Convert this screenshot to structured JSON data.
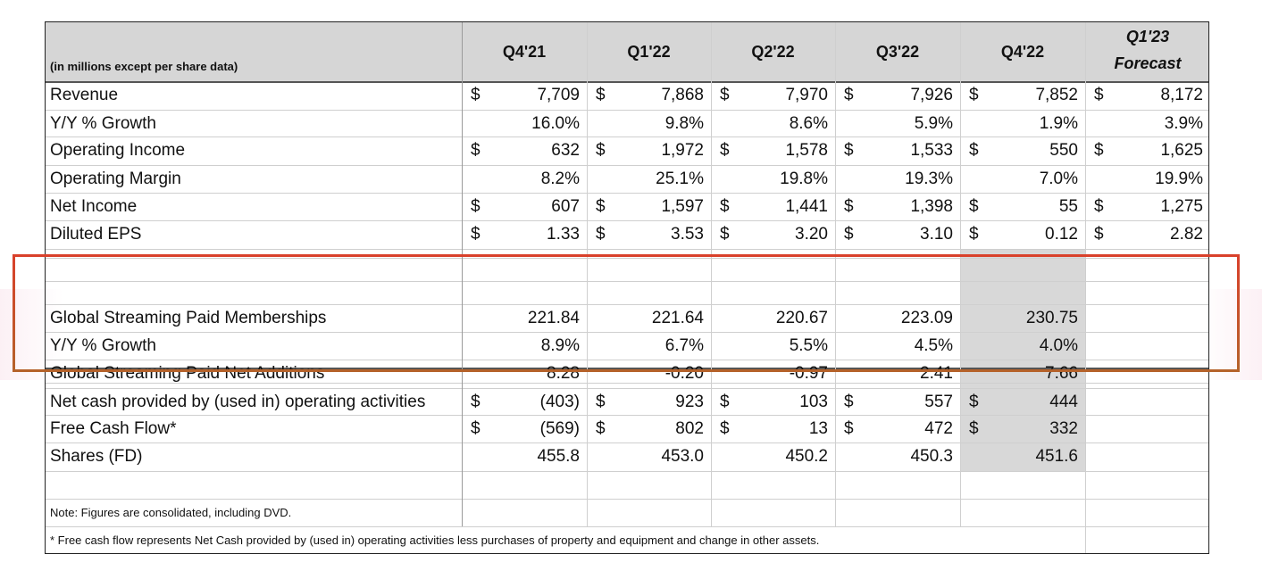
{
  "header": {
    "units_label": "(in millions except per share data)",
    "columns": [
      "Q4'21",
      "Q1'22",
      "Q2'22",
      "Q3'22",
      "Q4'22"
    ],
    "forecast_top": "Q1'23",
    "forecast_bottom": "Forecast"
  },
  "rows": {
    "revenue": {
      "label": "Revenue",
      "values": [
        "7,709",
        "7,868",
        "7,970",
        "7,926",
        "7,852",
        "8,172"
      ]
    },
    "revenue_growth": {
      "label": " Y/Y % Growth",
      "values": [
        "16.0%",
        "9.8%",
        "8.6%",
        "5.9%",
        "1.9%",
        "3.9%"
      ]
    },
    "operating_income": {
      "label": "Operating Income",
      "values": [
        "632",
        "1,972",
        "1,578",
        "1,533",
        "550",
        "1,625"
      ]
    },
    "operating_margin": {
      "label": "Operating Margin",
      "values": [
        "8.2%",
        "25.1%",
        "19.8%",
        "19.3%",
        "7.0%",
        "19.9%"
      ]
    },
    "net_income": {
      "label": "Net Income",
      "values": [
        "607",
        "1,597",
        "1,441",
        "1,398",
        "55",
        "1,275"
      ]
    },
    "diluted_eps": {
      "label": "Diluted EPS",
      "values": [
        "1.33",
        "3.53",
        "3.20",
        "3.10",
        "0.12",
        "2.82"
      ]
    },
    "memberships": {
      "label": "Global Streaming Paid Memberships",
      "values": [
        "221.84",
        "221.64",
        "220.67",
        "223.09",
        "230.75",
        ""
      ]
    },
    "membership_growth": {
      "label": " Y/Y % Growth",
      "values": [
        "8.9%",
        "6.7%",
        "5.5%",
        "4.5%",
        "4.0%",
        ""
      ]
    },
    "net_additions": {
      "label": "Global Streaming Paid Net Additions",
      "values": [
        "8.28",
        "-0.20",
        "-0.97",
        "2.41",
        "7.66",
        ""
      ]
    },
    "operating_cash": {
      "label": "Net cash provided by (used in) operating activities",
      "values": [
        "(403)",
        "923",
        "103",
        "557",
        "444",
        ""
      ]
    },
    "free_cash_flow": {
      "label": "Free Cash Flow*",
      "values": [
        "(569)",
        "802",
        "13",
        "472",
        "332",
        ""
      ]
    },
    "shares": {
      "label": "Shares (FD)",
      "values": [
        "455.8",
        "453.0",
        "450.2",
        "450.3",
        "451.6",
        ""
      ]
    }
  },
  "currency_symbol": "$",
  "notes": {
    "note1": "Note: Figures are consolidated, including DVD.",
    "note2": "* Free cash flow represents Net Cash provided by (used in) operating activities less purchases of property and equipment and change in other assets."
  },
  "colors": {
    "q4_22_shade": "#d8d8d8",
    "highlight_border_top": "#d9412b",
    "highlight_border_bottom": "#b5622a"
  }
}
